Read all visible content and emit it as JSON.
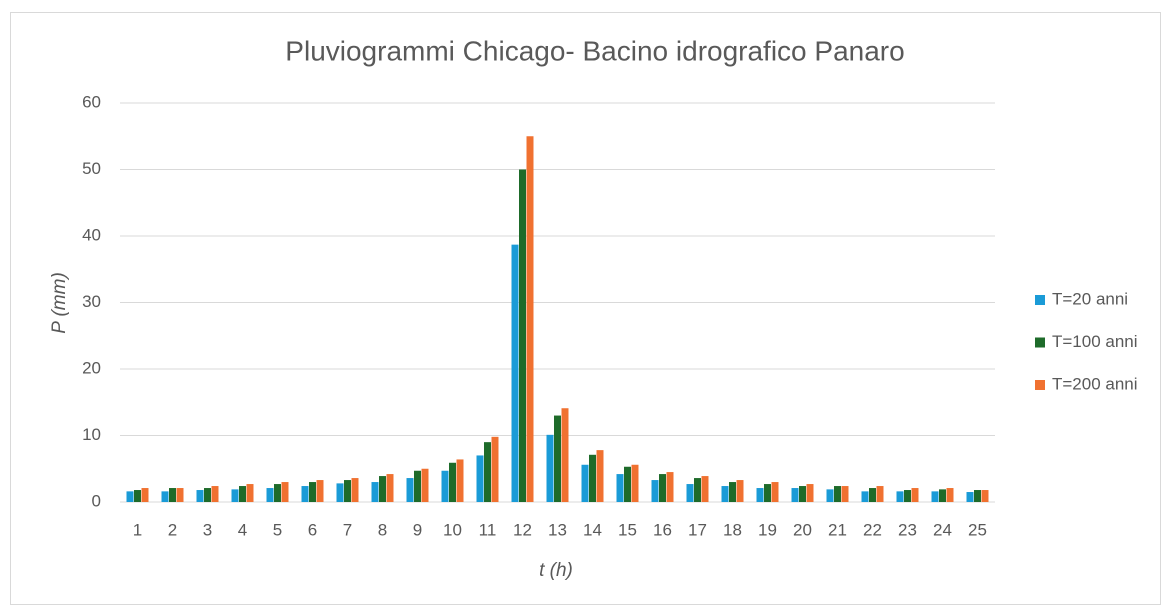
{
  "chart_data": {
    "type": "bar",
    "title": "Pluviogrammi Chicago- Bacino idrografico Panaro",
    "x_label": "t (h)",
    "y_label": "P (mm)",
    "categories": [
      "1",
      "2",
      "3",
      "4",
      "5",
      "6",
      "7",
      "8",
      "9",
      "10",
      "11",
      "12",
      "13",
      "14",
      "15",
      "16",
      "17",
      "18",
      "19",
      "20",
      "21",
      "22",
      "23",
      "24",
      "25"
    ],
    "series": [
      {
        "name": "T=20 anni",
        "color": "#1a9bd7",
        "values": [
          1.6,
          1.6,
          1.8,
          1.9,
          2.1,
          2.4,
          2.8,
          3.0,
          3.6,
          4.7,
          7.0,
          38.7,
          10.1,
          5.6,
          4.2,
          3.3,
          2.7,
          2.4,
          2.1,
          2.1,
          1.9,
          1.6,
          1.6,
          1.6,
          1.5
        ]
      },
      {
        "name": "T=100 anni",
        "color": "#1e6b2a",
        "values": [
          1.8,
          2.1,
          2.1,
          2.4,
          2.7,
          3.0,
          3.3,
          3.9,
          4.7,
          5.9,
          9.0,
          50.0,
          13.0,
          7.1,
          5.3,
          4.2,
          3.6,
          3.0,
          2.7,
          2.4,
          2.4,
          2.1,
          1.8,
          1.9,
          1.8
        ]
      },
      {
        "name": "T=200 anni",
        "color": "#f07130",
        "values": [
          2.1,
          2.1,
          2.4,
          2.7,
          3.0,
          3.3,
          3.6,
          4.2,
          5.0,
          6.4,
          9.8,
          55.0,
          14.1,
          7.8,
          5.6,
          4.5,
          3.9,
          3.3,
          3.0,
          2.7,
          2.4,
          2.4,
          2.1,
          2.1,
          1.8
        ]
      }
    ],
    "ylim": [
      0,
      60
    ],
    "yticks": [
      0,
      10,
      20,
      30,
      40,
      50,
      60
    ],
    "grid": true,
    "legend": "right"
  }
}
